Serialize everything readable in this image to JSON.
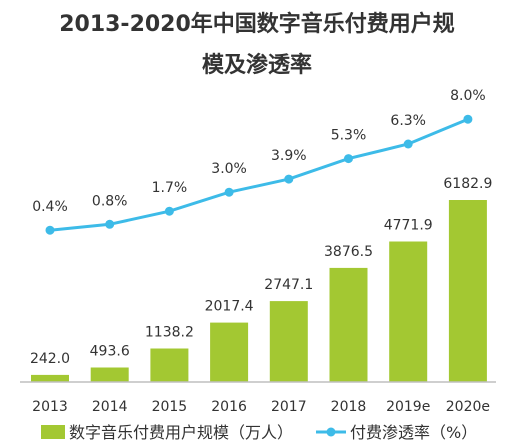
{
  "chart_data": {
    "type": "bar",
    "title_lines": [
      "2013-2020年中国数字音乐付费用户规",
      "模及渗透率"
    ],
    "categories": [
      "2013",
      "2014",
      "2015",
      "2016",
      "2017",
      "2018",
      "2019e",
      "2020e"
    ],
    "series": [
      {
        "name": "数字音乐付费用户规模（万人）",
        "type": "bar",
        "color": "#a3c832",
        "values": [
          242.0,
          493.6,
          1138.2,
          2017.4,
          2747.1,
          3876.5,
          4771.9,
          6182.9
        ],
        "data_labels": [
          "242.0",
          "493.6",
          "1138.2",
          "2017.4",
          "2747.1",
          "3876.5",
          "4771.9",
          "6182.9"
        ]
      },
      {
        "name": "付费渗透率（%）",
        "type": "line",
        "color": "#3dbbe8",
        "values": [
          0.4,
          0.8,
          1.7,
          3.0,
          3.9,
          5.3,
          6.3,
          8.0
        ],
        "data_labels": [
          "0.4%",
          "0.8%",
          "1.7%",
          "3.0%",
          "3.9%",
          "5.3%",
          "6.3%",
          "8.0%"
        ]
      }
    ],
    "xlabel": "",
    "ylabel": "",
    "grid": false,
    "legend": "bottom"
  }
}
